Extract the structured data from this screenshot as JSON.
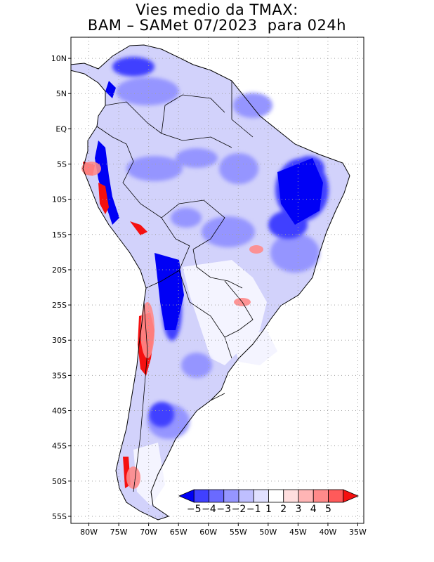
{
  "title": {
    "line1": "Vies medio da TMAX:",
    "line2": "BAM – SAMet 07/2023  para 024h"
  },
  "axes": {
    "lat_labels": [
      "10N",
      "5N",
      "EQ",
      "5S",
      "10S",
      "15S",
      "20S",
      "25S",
      "30S",
      "35S",
      "40S",
      "45S",
      "50S",
      "55S"
    ],
    "lat_values": [
      10,
      5,
      0,
      -5,
      -10,
      -15,
      -20,
      -25,
      -30,
      -35,
      -40,
      -45,
      -50,
      -55
    ],
    "lon_labels": [
      "80W",
      "75W",
      "70W",
      "65W",
      "60W",
      "55W",
      "50W",
      "45W",
      "40W",
      "35W"
    ],
    "lon_values": [
      -80,
      -75,
      -70,
      -65,
      -60,
      -55,
      -50,
      -45,
      -40,
      -35
    ],
    "lon_range": [
      -83,
      -34
    ],
    "lat_range": [
      -56,
      13
    ]
  },
  "colorbar": {
    "labels": [
      "−5",
      "−4",
      "−3",
      "−2",
      "−1",
      "1",
      "2",
      "3",
      "4",
      "5"
    ],
    "colors": [
      "#0000f5",
      "#4040ff",
      "#6a6aff",
      "#9595ff",
      "#bfbfff",
      "#e0e0ff",
      "#ffffff",
      "#ffdede",
      "#ffb5b5",
      "#ff8a8a",
      "#ff5a5a",
      "#f51010"
    ]
  },
  "map": {
    "projection": "lat-lon",
    "grid": "dotted",
    "field": "TMAX bias"
  }
}
